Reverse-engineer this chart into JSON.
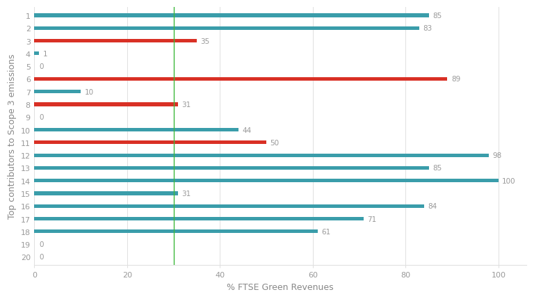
{
  "categories": [
    1,
    2,
    3,
    4,
    5,
    6,
    7,
    8,
    9,
    10,
    11,
    12,
    13,
    14,
    15,
    16,
    17,
    18,
    19,
    20
  ],
  "values": [
    85,
    83,
    35,
    1,
    0,
    89,
    10,
    31,
    0,
    44,
    50,
    98,
    85,
    100,
    31,
    84,
    71,
    61,
    0,
    0
  ],
  "colors": [
    "#3a9daa",
    "#3a9daa",
    "#d93025",
    "#3a9daa",
    "#3a9daa",
    "#d93025",
    "#3a9daa",
    "#d93025",
    "#3a9daa",
    "#3a9daa",
    "#d93025",
    "#3a9daa",
    "#3a9daa",
    "#3a9daa",
    "#3a9daa",
    "#3a9daa",
    "#3a9daa",
    "#3a9daa",
    "#3a9daa",
    "#3a9daa"
  ],
  "vline_x": 30,
  "vline_color": "#3db83b",
  "xlabel": "% FTSE Green Revenues",
  "ylabel": "Top contributors to Scope 3 emissions",
  "xlim": [
    0,
    106
  ],
  "bar_height": 0.28,
  "background_color": "#ffffff",
  "grid_color": "#e0e0e0",
  "label_color": "#999999",
  "tick_label_color": "#999999",
  "axis_label_color": "#888888",
  "value_label_fontsize": 7.5,
  "axis_label_fontsize": 9,
  "tick_fontsize": 8
}
